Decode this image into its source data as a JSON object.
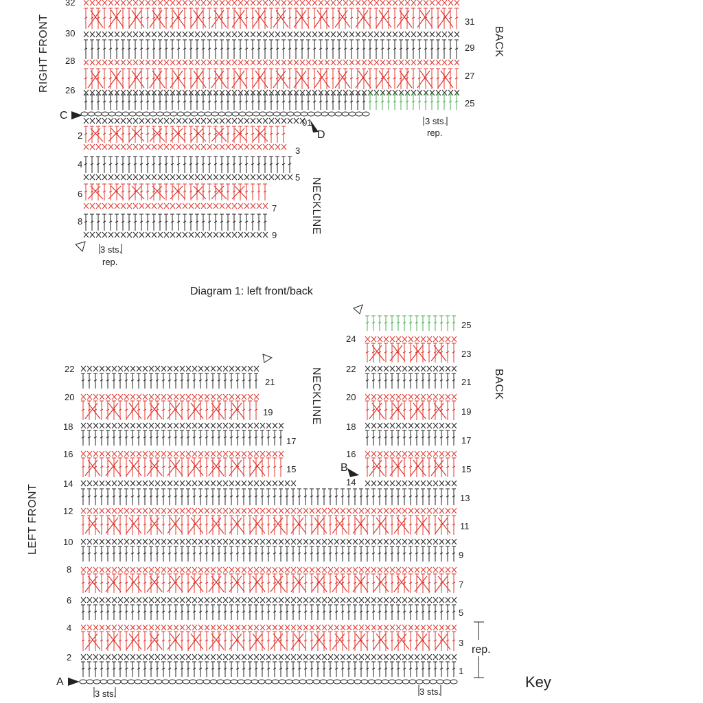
{
  "diagram_title": "Diagram 1: left front/back",
  "key_label": "Key",
  "rep_label": "rep.",
  "sts_label": "3 sts.",
  "section_labels": {
    "right_front": "RIGHT FRONT",
    "back_top": "BACK",
    "neckline_top": "NECKLINE",
    "left_front": "LEFT FRONT",
    "neckline_bottom": "NECKLINE",
    "back_bottom": "BACK"
  },
  "markers": {
    "a": "A",
    "b": "B",
    "c": "C",
    "d": "D"
  },
  "colors": {
    "red_rows": "#e0332b",
    "black_rows": "#222222",
    "green_rows": "#4caf50"
  },
  "top_left_row_numbers": [
    "32",
    "30",
    "28",
    "26",
    "2",
    "4",
    "6",
    "8"
  ],
  "top_right_row_numbers": [
    "31",
    "29",
    "27",
    "25",
    "3",
    "5",
    "7",
    "9"
  ],
  "bottom_left_row_numbers": [
    "22",
    "20",
    "18",
    "16",
    "14",
    "12",
    "10",
    "8",
    "6",
    "4",
    "2"
  ],
  "bottom_right_row_numbers": [
    "21",
    "19",
    "17",
    "15",
    "13",
    "11",
    "9",
    "7",
    "5",
    "3",
    "1"
  ],
  "back_left_row_numbers": [
    "24",
    "22",
    "20",
    "18",
    "16",
    "14"
  ],
  "back_right_row_numbers": [
    "25",
    "23",
    "21",
    "19",
    "17",
    "15"
  ],
  "start_row_label": "01"
}
